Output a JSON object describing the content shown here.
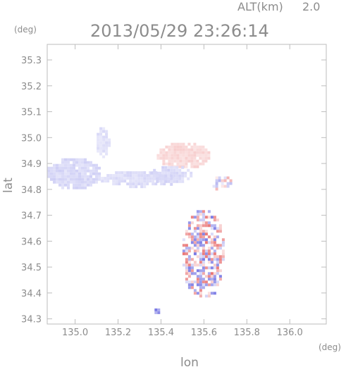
{
  "header": {
    "altitude_label": "ALT(km)",
    "altitude_value": "2.0",
    "datetime": "2013/05/29 23:26:14"
  },
  "chart_data": {
    "type": "heatmap",
    "xlabel": "lon",
    "ylabel": "lat",
    "x_unit": "(deg)",
    "y_unit": "(deg)",
    "xlim": [
      134.87,
      136.17
    ],
    "ylim": [
      34.28,
      35.36
    ],
    "xticks": [
      135.0,
      135.2,
      135.4,
      135.6,
      135.8,
      136.0
    ],
    "yticks": [
      34.3,
      34.4,
      34.5,
      34.6,
      34.7,
      34.8,
      34.9,
      35.0,
      35.1,
      35.2,
      35.3
    ],
    "xtick_labels": [
      "135.0",
      "135.2",
      "135.4",
      "135.6",
      "135.8",
      "136.0"
    ],
    "ytick_labels": [
      "34.3",
      "34.4",
      "34.5",
      "34.6",
      "34.7",
      "34.8",
      "34.9",
      "35.0",
      "35.1",
      "35.2",
      "35.3"
    ],
    "colors": {
      "positive": "#e03a3a",
      "negative": "#4040d8",
      "frame": "#bdbdbd",
      "text": "#8c8c8c"
    },
    "regions": [
      {
        "name": "west-band",
        "lon": [
          134.87,
          135.12
        ],
        "lat": [
          34.8,
          34.92
        ],
        "sign": "negative",
        "intensity": 0.25
      },
      {
        "name": "north-west-patch",
        "lon": [
          135.1,
          135.16
        ],
        "lat": [
          34.92,
          35.04
        ],
        "sign": "negative",
        "intensity": 0.2
      },
      {
        "name": "central-band",
        "lon": [
          135.12,
          135.46
        ],
        "lat": [
          34.81,
          34.87
        ],
        "sign": "negative",
        "intensity": 0.22
      },
      {
        "name": "northern-cluster-upper",
        "lon": [
          135.38,
          135.63
        ],
        "lat": [
          34.88,
          34.98
        ],
        "sign": "positive",
        "intensity": 0.25
      },
      {
        "name": "northern-cluster-lower",
        "lon": [
          135.35,
          135.55
        ],
        "lat": [
          34.82,
          34.89
        ],
        "sign": "negative",
        "intensity": 0.25
      },
      {
        "name": "south-column",
        "lon": [
          135.5,
          135.7
        ],
        "lat": [
          34.38,
          34.72
        ],
        "sign": "mixed",
        "intensity": 0.7
      },
      {
        "name": "east-ring",
        "lon": [
          135.64,
          135.73
        ],
        "lat": [
          34.79,
          34.85
        ],
        "sign": "mixed",
        "intensity": 0.4
      },
      {
        "name": "south-west-spot",
        "lon": [
          135.37,
          135.4
        ],
        "lat": [
          34.32,
          34.34
        ],
        "sign": "negative",
        "intensity": 0.7
      }
    ]
  }
}
